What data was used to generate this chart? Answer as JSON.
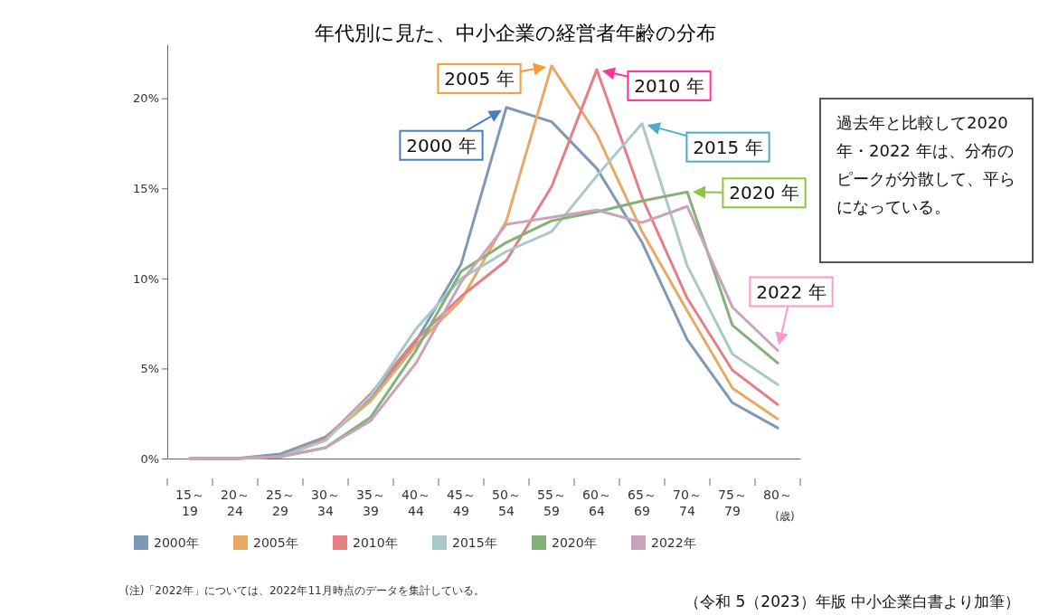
{
  "chart_data": {
    "type": "line",
    "title": "年代別に見た、中小企業の経営者年齢の分布",
    "xlabel": "(歳)",
    "categories": [
      "15～19",
      "20～24",
      "25～29",
      "30～34",
      "35～39",
      "40～44",
      "45～49",
      "50～54",
      "55～59",
      "60～64",
      "65～69",
      "70～74",
      "75～79",
      "80～"
    ],
    "series": [
      {
        "name": "2000年",
        "color": "#7f99b5",
        "values": [
          0,
          0,
          0.25,
          1.2,
          3.3,
          6.5,
          10.8,
          19.5,
          18.7,
          16.1,
          12.0,
          6.6,
          3.1,
          1.7
        ]
      },
      {
        "name": "2005年",
        "color": "#e8a866",
        "values": [
          0,
          0,
          0.1,
          1.1,
          3.2,
          6.3,
          8.8,
          13.2,
          21.8,
          18.0,
          12.6,
          8.2,
          3.9,
          2.2
        ]
      },
      {
        "name": "2010年",
        "color": "#e57f86",
        "values": [
          0,
          0,
          0.1,
          1.1,
          3.6,
          6.6,
          9.0,
          11.0,
          15.1,
          21.6,
          14.5,
          8.9,
          4.9,
          3.0
        ]
      },
      {
        "name": "2015年",
        "color": "#a9c8c8",
        "values": [
          0,
          0,
          0.1,
          1.0,
          3.5,
          7.2,
          10.0,
          11.5,
          12.6,
          15.7,
          18.6,
          10.7,
          5.8,
          4.1
        ]
      },
      {
        "name": "2020年",
        "color": "#84b07a",
        "values": [
          0,
          0,
          0.1,
          0.6,
          2.3,
          6.0,
          10.4,
          12.0,
          13.2,
          13.7,
          14.3,
          14.8,
          7.4,
          5.3
        ]
      },
      {
        "name": "2022年",
        "color": "#c9a3b9",
        "values": [
          0,
          0,
          0.1,
          0.6,
          2.1,
          5.3,
          9.8,
          13.0,
          13.4,
          13.8,
          13.1,
          14.0,
          8.4,
          6.0
        ]
      }
    ],
    "ylim": [
      0,
      23
    ],
    "yticks": [
      {
        "value": 0,
        "label": "0%"
      },
      {
        "value": 5,
        "label": "5%"
      },
      {
        "value": 10,
        "label": "10%"
      },
      {
        "value": 15,
        "label": "15%"
      },
      {
        "value": 20,
        "label": "20%"
      }
    ],
    "grid": false,
    "legend": "bottom left",
    "marker": "none",
    "line_style": "solid",
    "annotations": [
      {
        "text": "2000 年",
        "x": "50～54",
        "y": 19.5
      },
      {
        "text": "2005 年",
        "x": "55～59",
        "y": 21.8
      },
      {
        "text": "2010 年",
        "x": "60～64",
        "y": 21.6
      },
      {
        "text": "2015 年",
        "x": "65～69",
        "y": 18.6
      },
      {
        "text": "2020 年",
        "x": "70～74",
        "y": 14.8
      },
      {
        "text": "2022 年",
        "x": "80～",
        "y": 6.0
      },
      "過去年と比較して2020 年・2022 年は、分布のピークが分散して、平らになっている。",
      "(注)「2022年」については、2022年11月時点のデータを集計している。",
      "（令和 5（2023）年版 中小企業白書より加筆）"
    ]
  }
}
